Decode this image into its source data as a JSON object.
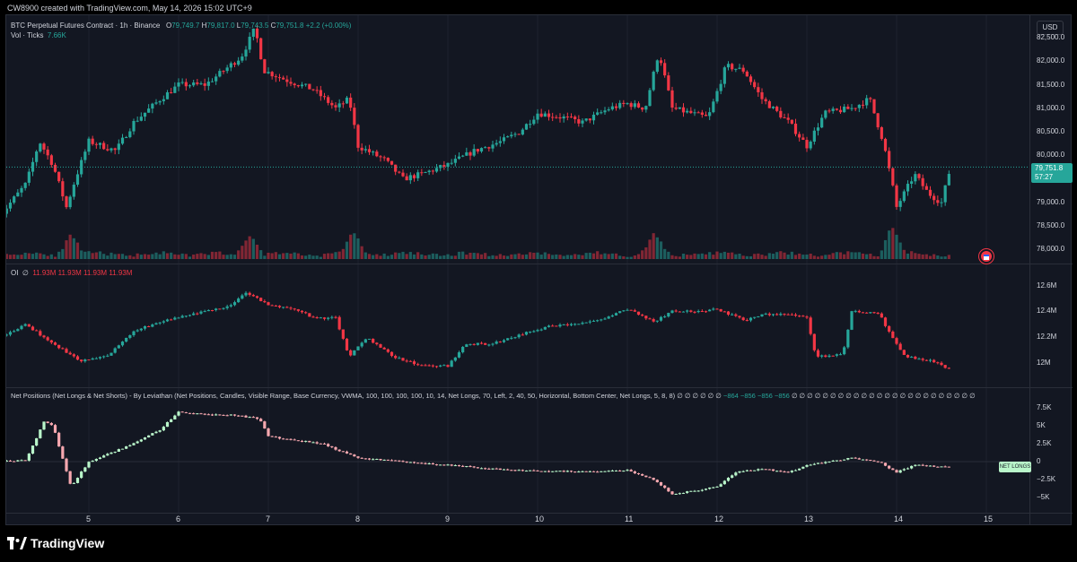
{
  "header": {
    "creator": "CW8900 created with TradingView.com, May 14, 2026 15:02 UTC+9"
  },
  "main_pane": {
    "symbol": "BTC Perpetual Futures Contract · 1h · Binance",
    "ohlc": {
      "o_label": "O",
      "o": "79,749.7",
      "h_label": "H",
      "h": "79,817.0",
      "l_label": "L",
      "l": "79,743.5",
      "c_label": "C",
      "c": "79,751.8",
      "change": "+2.2 (+0.00%)"
    },
    "volume_label": "Vol · Ticks",
    "volume_value": "7.66K",
    "currency": "USD",
    "price_tag": "79,751.8",
    "countdown": "57:27",
    "y_ticks": [
      "82,500.0",
      "82,000.0",
      "81,500.0",
      "81,000.0",
      "80,500.0",
      "80,000.0",
      "79,000.0",
      "78,500.0",
      "78,000.0"
    ]
  },
  "oi_pane": {
    "label": "OI",
    "values": [
      "11.93M",
      "11.93M",
      "11.93M",
      "11.93M"
    ],
    "y_ticks": [
      "12.6M",
      "12.4M",
      "12.2M",
      "12M"
    ]
  },
  "net_pane": {
    "label": "Net Positions (Net Longs & Net Shorts) - By Leviathan (Net Positions, Candles, Visible Range, Base Currency, VWMA, 100, 100, 100, 100, 10, 14, Net Longs, 70, Left, 2, 40, 50, Horizontal, Bottom Center, Net Longs, 5, 8, 8)",
    "empty_prefix": "∅ ∅ ∅ ∅ ∅ ∅",
    "values": [
      "−864",
      "−856",
      "−856",
      "−856"
    ],
    "empty_suffix": "∅ ∅ ∅ ∅ ∅ ∅ ∅ ∅ ∅ ∅ ∅ ∅ ∅ ∅ ∅ ∅ ∅ ∅ ∅ ∅ ∅ ∅ ∅ ∅",
    "y_ticks": [
      "7.5K",
      "5K",
      "2.5K",
      "0",
      "−2.5K",
      "−5K"
    ],
    "tag": "NET LONGS"
  },
  "x_axis": [
    "5",
    "6",
    "7",
    "8",
    "9",
    "10",
    "11",
    "12",
    "13",
    "14",
    "15"
  ],
  "footer": {
    "brand": "TradingView"
  },
  "colors": {
    "up": "#26a69a",
    "down": "#f23645",
    "up_light": "#b9f6ca",
    "down_light": "#f7a8b0",
    "background": "#131722"
  },
  "chart_data": [
    {
      "type": "candlestick",
      "title": "BTC Perpetual Futures Contract · 1h · Binance",
      "x_ticks": [
        "5",
        "6",
        "7",
        "8",
        "9",
        "10",
        "11",
        "12",
        "13",
        "14",
        "15"
      ],
      "ylim": [
        77800,
        82900
      ],
      "path": [
        [
          4.0,
          78700
        ],
        [
          4.3,
          79400
        ],
        [
          4.45,
          80300
        ],
        [
          4.6,
          79800
        ],
        [
          4.75,
          78900
        ],
        [
          4.85,
          79500
        ],
        [
          5.0,
          80300
        ],
        [
          5.3,
          80100
        ],
        [
          5.5,
          80700
        ],
        [
          5.8,
          81200
        ],
        [
          6.0,
          81500
        ],
        [
          6.3,
          81500
        ],
        [
          6.5,
          81800
        ],
        [
          6.7,
          82100
        ],
        [
          6.85,
          82700
        ],
        [
          6.95,
          81800
        ],
        [
          7.2,
          81600
        ],
        [
          7.5,
          81400
        ],
        [
          7.75,
          81000
        ],
        [
          7.9,
          81200
        ],
        [
          8.0,
          80200
        ],
        [
          8.3,
          79900
        ],
        [
          8.5,
          79500
        ],
        [
          8.7,
          79600
        ],
        [
          9.0,
          79800
        ],
        [
          9.3,
          80100
        ],
        [
          9.6,
          80300
        ],
        [
          9.8,
          80500
        ],
        [
          10.0,
          80900
        ],
        [
          10.3,
          80800
        ],
        [
          10.5,
          80700
        ],
        [
          10.8,
          81000
        ],
        [
          11.0,
          81100
        ],
        [
          11.2,
          81000
        ],
        [
          11.35,
          82200
        ],
        [
          11.5,
          81000
        ],
        [
          11.7,
          80900
        ],
        [
          11.9,
          80800
        ],
        [
          12.1,
          81900
        ],
        [
          12.3,
          81800
        ],
        [
          12.5,
          81200
        ],
        [
          12.8,
          80700
        ],
        [
          13.0,
          80200
        ],
        [
          13.2,
          80900
        ],
        [
          13.5,
          81000
        ],
        [
          13.7,
          81200
        ],
        [
          13.85,
          80300
        ],
        [
          13.95,
          79400
        ],
        [
          14.0,
          78900
        ],
        [
          14.2,
          79600
        ],
        [
          14.35,
          79200
        ],
        [
          14.5,
          79000
        ],
        [
          14.6,
          79750
        ]
      ]
    },
    {
      "type": "bar",
      "title": "Vol · Ticks",
      "description": "hourly volume bars",
      "last": "7.66K",
      "peaks": [
        [
          4.8,
          9
        ],
        [
          6.8,
          9.5
        ],
        [
          7.95,
          10
        ],
        [
          11.3,
          9
        ],
        [
          13.95,
          13
        ]
      ]
    },
    {
      "type": "candlestick",
      "title": "OI",
      "ylim": [
        11850000,
        12680000
      ],
      "path": [
        [
          4.0,
          12200000
        ],
        [
          4.3,
          12300000
        ],
        [
          4.6,
          12150000
        ],
        [
          4.9,
          12020000
        ],
        [
          5.2,
          12050000
        ],
        [
          5.5,
          12250000
        ],
        [
          5.8,
          12320000
        ],
        [
          6.0,
          12350000
        ],
        [
          6.3,
          12400000
        ],
        [
          6.6,
          12450000
        ],
        [
          6.75,
          12550000
        ],
        [
          7.0,
          12450000
        ],
        [
          7.3,
          12420000
        ],
        [
          7.5,
          12350000
        ],
        [
          7.75,
          12350000
        ],
        [
          7.9,
          12050000
        ],
        [
          8.1,
          12200000
        ],
        [
          8.4,
          12050000
        ],
        [
          8.7,
          11980000
        ],
        [
          9.0,
          11980000
        ],
        [
          9.2,
          12150000
        ],
        [
          9.5,
          12150000
        ],
        [
          9.8,
          12220000
        ],
        [
          10.1,
          12280000
        ],
        [
          10.4,
          12300000
        ],
        [
          10.7,
          12330000
        ],
        [
          11.0,
          12420000
        ],
        [
          11.3,
          12320000
        ],
        [
          11.5,
          12400000
        ],
        [
          11.8,
          12400000
        ],
        [
          12.0,
          12420000
        ],
        [
          12.3,
          12330000
        ],
        [
          12.5,
          12380000
        ],
        [
          12.8,
          12380000
        ],
        [
          13.0,
          12350000
        ],
        [
          13.1,
          12050000
        ],
        [
          13.4,
          12070000
        ],
        [
          13.5,
          12400000
        ],
        [
          13.8,
          12390000
        ],
        [
          13.95,
          12200000
        ],
        [
          14.1,
          12050000
        ],
        [
          14.4,
          12020000
        ],
        [
          14.6,
          11950000
        ]
      ]
    },
    {
      "type": "candlestick",
      "title": "Net Positions (Net Longs & Net Shorts)",
      "ylim": [
        -6250,
        8500
      ],
      "path": [
        [
          4.0,
          0
        ],
        [
          4.3,
          200
        ],
        [
          4.5,
          5500
        ],
        [
          4.6,
          5000
        ],
        [
          4.8,
          -3500
        ],
        [
          5.0,
          0
        ],
        [
          5.3,
          1500
        ],
        [
          5.5,
          2500
        ],
        [
          5.8,
          4500
        ],
        [
          6.0,
          7000
        ],
        [
          6.3,
          6500
        ],
        [
          6.6,
          6500
        ],
        [
          6.9,
          6000
        ],
        [
          7.0,
          3500
        ],
        [
          7.3,
          3000
        ],
        [
          7.6,
          2500
        ],
        [
          8.0,
          500
        ],
        [
          8.5,
          0
        ],
        [
          9.0,
          -500
        ],
        [
          9.5,
          -1000
        ],
        [
          10.0,
          -1300
        ],
        [
          10.5,
          -1400
        ],
        [
          11.0,
          -1200
        ],
        [
          11.3,
          -2500
        ],
        [
          11.5,
          -4500
        ],
        [
          11.8,
          -4000
        ],
        [
          12.0,
          -3500
        ],
        [
          12.2,
          -1500
        ],
        [
          12.5,
          -1000
        ],
        [
          12.8,
          -1500
        ],
        [
          13.0,
          -500
        ],
        [
          13.5,
          500
        ],
        [
          13.8,
          0
        ],
        [
          14.0,
          -1500
        ],
        [
          14.2,
          -500
        ],
        [
          14.6,
          -800
        ]
      ]
    }
  ]
}
